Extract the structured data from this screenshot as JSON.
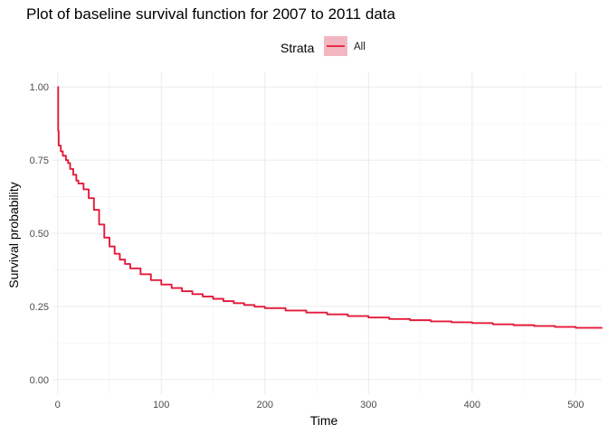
{
  "chart_data": {
    "type": "line",
    "title": "Plot of baseline survival function for 2007 to 2011 data",
    "xlabel": "Time",
    "ylabel": "Survival probability",
    "xlim": [
      -5,
      525
    ],
    "ylim": [
      -0.05,
      1.05
    ],
    "x_ticks": [
      0,
      100,
      200,
      300,
      400,
      500
    ],
    "x_tick_labels": [
      "0",
      "100",
      "200",
      "300",
      "400",
      "500"
    ],
    "y_ticks": [
      0,
      0.25,
      0.5,
      0.75,
      1
    ],
    "y_tick_labels": [
      "0.00",
      "0.25",
      "0.50",
      "0.75",
      "1.00"
    ],
    "grid": true,
    "legend": {
      "title": "Strata",
      "position": "top",
      "entries": [
        "All"
      ]
    },
    "series": [
      {
        "name": "All",
        "color": "#e41a3a",
        "x": [
          0,
          0.5,
          1,
          3,
          5,
          8,
          10,
          12,
          15,
          18,
          20,
          25,
          30,
          35,
          40,
          45,
          50,
          55,
          60,
          65,
          70,
          80,
          90,
          100,
          110,
          120,
          130,
          140,
          150,
          160,
          170,
          180,
          190,
          200,
          220,
          240,
          260,
          280,
          300,
          320,
          340,
          360,
          380,
          400,
          420,
          440,
          460,
          480,
          500,
          525
        ],
        "y": [
          1.0,
          0.85,
          0.8,
          0.78,
          0.765,
          0.75,
          0.74,
          0.72,
          0.7,
          0.68,
          0.67,
          0.65,
          0.62,
          0.58,
          0.53,
          0.485,
          0.455,
          0.43,
          0.41,
          0.395,
          0.38,
          0.36,
          0.34,
          0.325,
          0.313,
          0.302,
          0.292,
          0.284,
          0.276,
          0.268,
          0.261,
          0.255,
          0.249,
          0.244,
          0.236,
          0.229,
          0.223,
          0.217,
          0.212,
          0.207,
          0.203,
          0.199,
          0.196,
          0.193,
          0.189,
          0.186,
          0.183,
          0.18,
          0.177,
          0.174
        ]
      }
    ]
  }
}
